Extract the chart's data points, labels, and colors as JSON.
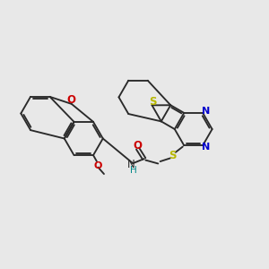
{
  "bg": "#e8e8e8",
  "bc": "#2a2a2a",
  "S_col": "#b8b800",
  "N_col": "#0000cc",
  "O_col": "#cc0000",
  "H_col": "#008888",
  "lw": 1.35,
  "lw2": 1.35,
  "figsize": [
    3.0,
    3.0
  ],
  "dpi": 100,
  "xlim": [
    0,
    10
  ],
  "ylim": [
    0,
    10
  ]
}
